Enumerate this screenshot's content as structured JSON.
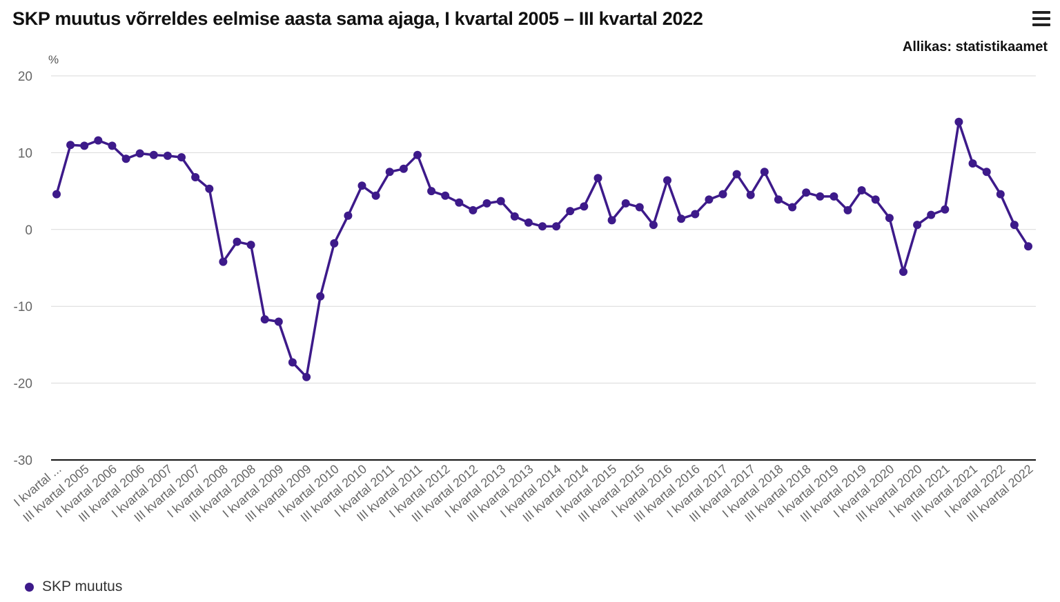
{
  "title": "SKP muutus võrreldes eelmise aasta sama ajaga, I kvartal 2005 – III kvartal 2022",
  "source": "Allikas: statistikaamet",
  "menu_icon": "hamburger-menu-icon",
  "colors": {
    "series": "#3d1a8a",
    "grid": "#d9d9d9",
    "axis": "#111111",
    "tick": "#666666"
  },
  "chart_data": {
    "type": "line",
    "title": "SKP muutus võrreldes eelmise aasta sama ajaga, I kvartal 2005 – III kvartal 2022",
    "ylabel": "%",
    "ylim": [
      -30,
      20
    ],
    "yticks": [
      20,
      10,
      0,
      -10,
      -20,
      -30
    ],
    "grid": true,
    "legend_position": "bottom-left",
    "x_tick_labels": [
      "I kvartal ...",
      "III kvartal 2005",
      "I kvartal 2006",
      "III kvartal 2006",
      "I kvartal 2007",
      "III kvartal 2007",
      "I kvartal 2008",
      "III kvartal 2008",
      "I kvartal 2009",
      "III kvartal 2009",
      "I kvartal 2010",
      "III kvartal 2010",
      "I kvartal 2011",
      "III kvartal 2011",
      "I kvartal 2012",
      "III kvartal 2012",
      "I kvartal 2013",
      "III kvartal 2013",
      "I kvartal 2014",
      "III kvartal 2014",
      "I kvartal 2015",
      "III kvartal 2015",
      "I kvartal 2016",
      "III kvartal 2016",
      "I kvartal 2017",
      "III kvartal 2017",
      "I kvartal 2018",
      "III kvartal 2018",
      "I kvartal 2019",
      "III kvartal 2019",
      "I kvartal 2020",
      "III kvartal 2020",
      "I kvartal 2021",
      "III kvartal 2021",
      "I kvartal 2022",
      "III kvartal 2022"
    ],
    "series": [
      {
        "name": "SKP muutus",
        "values": [
          4.6,
          11.0,
          10.9,
          11.6,
          10.9,
          9.2,
          9.9,
          9.7,
          9.6,
          9.4,
          6.8,
          5.3,
          -4.2,
          -1.6,
          -2.0,
          -11.7,
          -12.0,
          -17.3,
          -19.2,
          -8.7,
          -1.8,
          1.8,
          5.7,
          4.4,
          7.5,
          7.9,
          9.7,
          5.0,
          4.4,
          3.5,
          2.5,
          3.4,
          3.7,
          1.7,
          0.9,
          0.4,
          0.4,
          2.4,
          3.0,
          6.7,
          1.2,
          3.4,
          2.9,
          0.6,
          6.4,
          1.4,
          2.0,
          3.9,
          4.6,
          7.2,
          4.5,
          7.5,
          3.9,
          2.9,
          4.8,
          4.3,
          4.3,
          2.5,
          5.1,
          3.9,
          1.5,
          -5.5,
          0.6,
          1.9,
          2.6,
          14.0,
          8.6,
          7.5,
          4.6,
          0.6,
          -2.2
        ]
      }
    ]
  }
}
